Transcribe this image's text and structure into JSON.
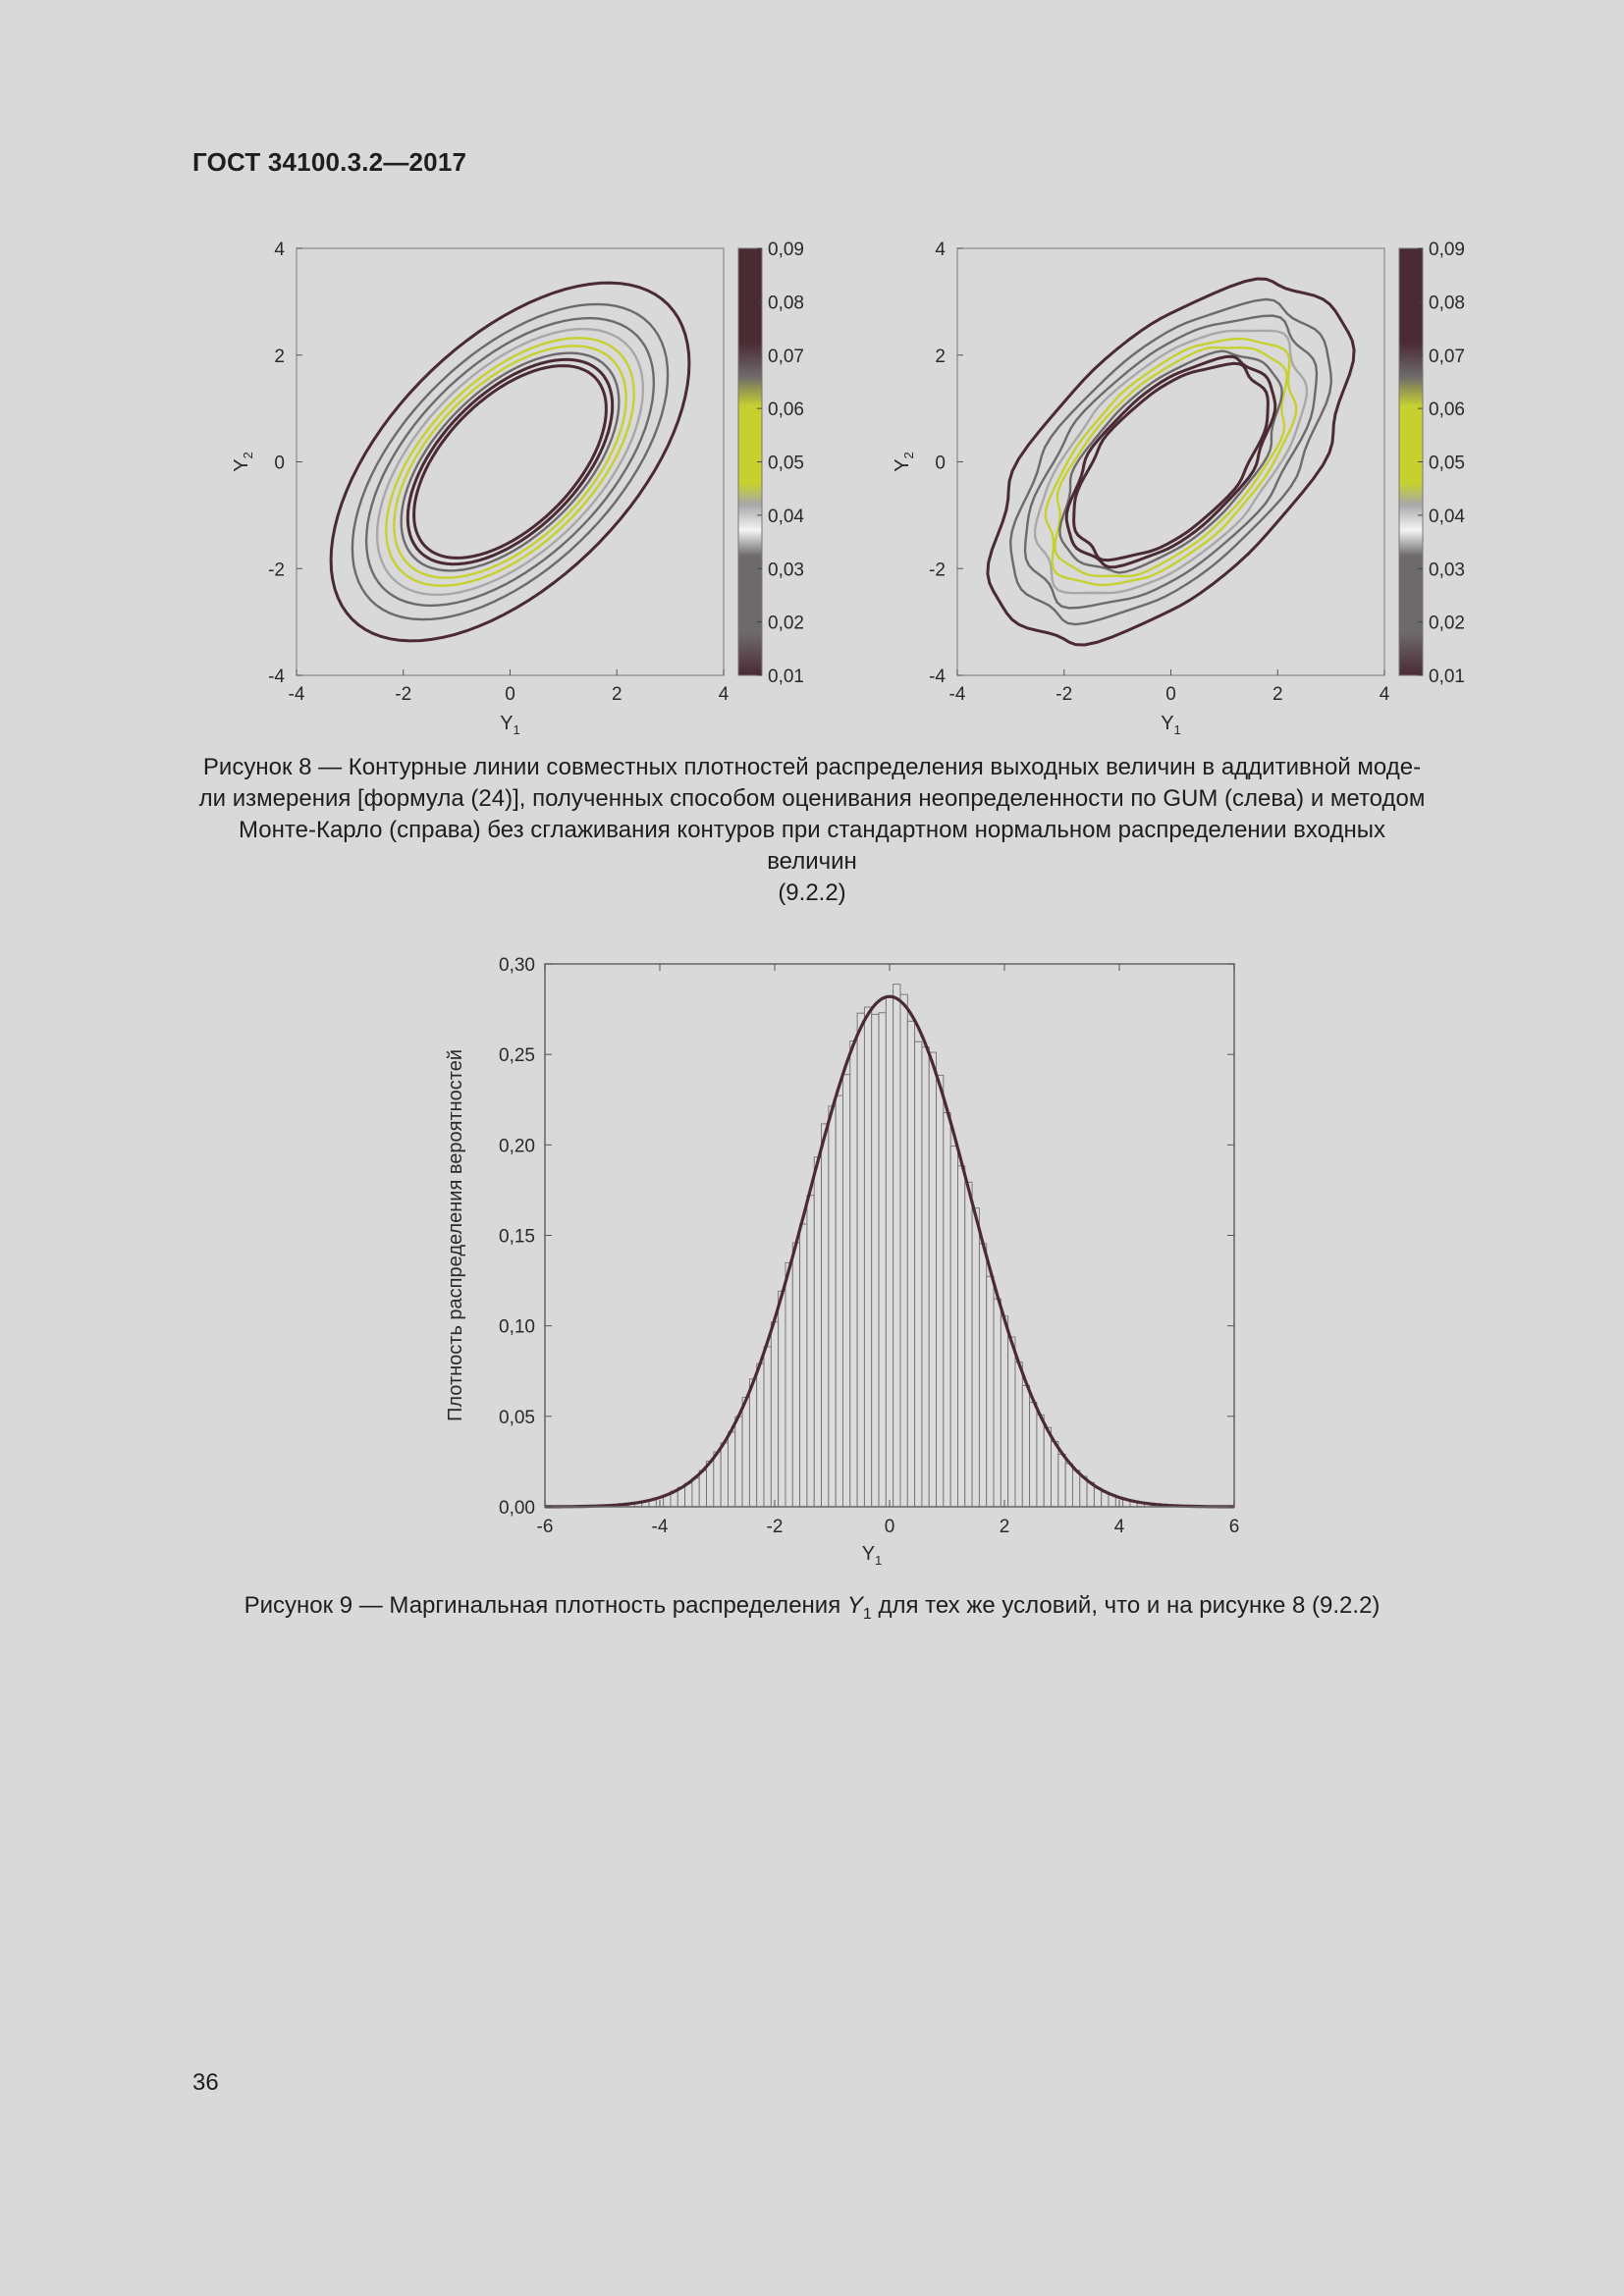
{
  "document": {
    "header": "ГОСТ 34100.3.2—2017",
    "page_number": "36"
  },
  "figure8": {
    "caption_lines": [
      "Рисунок 8 — Контурные линии совместных плотностей распределения выходных величин в аддитивной моде-",
      "ли измерения [формула (24)], полученных способом оценивания неопределенности по GUM (слева) и методом",
      "Монте-Карло (справа) без сглаживания контуров при стандартном нормальном распределении входных величин",
      "(9.2.2)"
    ],
    "xlabel_main": "Y",
    "xlabel_sub": "1",
    "ylabel_main": "Y",
    "ylabel_sub": "2",
    "x_ticks": [
      "-4",
      "-2",
      "0",
      "2",
      "4"
    ],
    "y_ticks": [
      "4",
      "2",
      "0",
      "-2",
      "-4"
    ],
    "colorbar_ticks": [
      "0,09",
      "0,08",
      "0,07",
      "0,06",
      "0,05",
      "0,04",
      "0,03",
      "0,02",
      "0,01"
    ],
    "colors": {
      "dark": "#4a2a33",
      "gray": "#6e6a6b",
      "light": "#a8a8a8",
      "yellow": "#c6d130",
      "white": "#f5f5f5"
    }
  },
  "figure9": {
    "caption_before": "Рисунок 9 — Маргинальная плотность распределения ",
    "caption_var_main": "Y",
    "caption_var_sub": "1",
    "caption_after": " для тех же условий, что и на рисунке 8 (9.2.2)",
    "ylabel": "Плотность распределения вероятностей",
    "xlabel_main": "Y",
    "xlabel_sub": "1",
    "x_ticks": [
      "-6",
      "-4",
      "-2",
      "0",
      "2",
      "4",
      "6"
    ],
    "y_ticks": [
      "0,30",
      "0,25",
      "0,20",
      "0,15",
      "0,10",
      "0,05",
      "0,00"
    ]
  },
  "chart_data": [
    {
      "type": "contour",
      "panel": "GUM (left)",
      "xlim": [
        -4,
        4
      ],
      "ylim": [
        -4,
        4
      ],
      "colorbar": {
        "range": [
          0.01,
          0.09
        ],
        "ticks": [
          0.09,
          0.08,
          0.07,
          0.06,
          0.05,
          0.04,
          0.03,
          0.02,
          0.01
        ]
      },
      "contour_levels": [
        0.01,
        0.02,
        0.03,
        0.04,
        0.05,
        0.06,
        0.07,
        0.08,
        0.09
      ],
      "level_colors": [
        "dark",
        "gray",
        "gray",
        "light",
        "yellow",
        "yellow",
        "gray",
        "dark",
        "dark"
      ],
      "center": [
        0,
        0
      ],
      "correlation_direction": "positive"
    },
    {
      "type": "contour",
      "panel": "Monte Carlo (right)",
      "xlim": [
        -4,
        4
      ],
      "ylim": [
        -4,
        4
      ],
      "colorbar": {
        "range": [
          0.01,
          0.09
        ],
        "ticks": [
          0.09,
          0.08,
          0.07,
          0.06,
          0.05,
          0.04,
          0.03,
          0.02,
          0.01
        ]
      },
      "contour_levels": [
        0.01,
        0.02,
        0.03,
        0.04,
        0.05,
        0.06,
        0.07,
        0.08,
        0.09
      ],
      "level_colors": [
        "dark",
        "gray",
        "gray",
        "light",
        "yellow",
        "yellow",
        "gray",
        "dark",
        "dark"
      ],
      "center": [
        0,
        0
      ],
      "correlation_direction": "positive",
      "contours": "unsmoothed"
    },
    {
      "type": "bar",
      "description_kind": "histogram with fitted density curve",
      "xlim": [
        -6,
        6
      ],
      "ylim": [
        0,
        0.3
      ],
      "bin_width": 0.125,
      "bin_centers_range": [
        -5,
        5
      ],
      "density_curve": {
        "mean": 0,
        "std": 1.414,
        "peak": 0.282
      }
    }
  ]
}
